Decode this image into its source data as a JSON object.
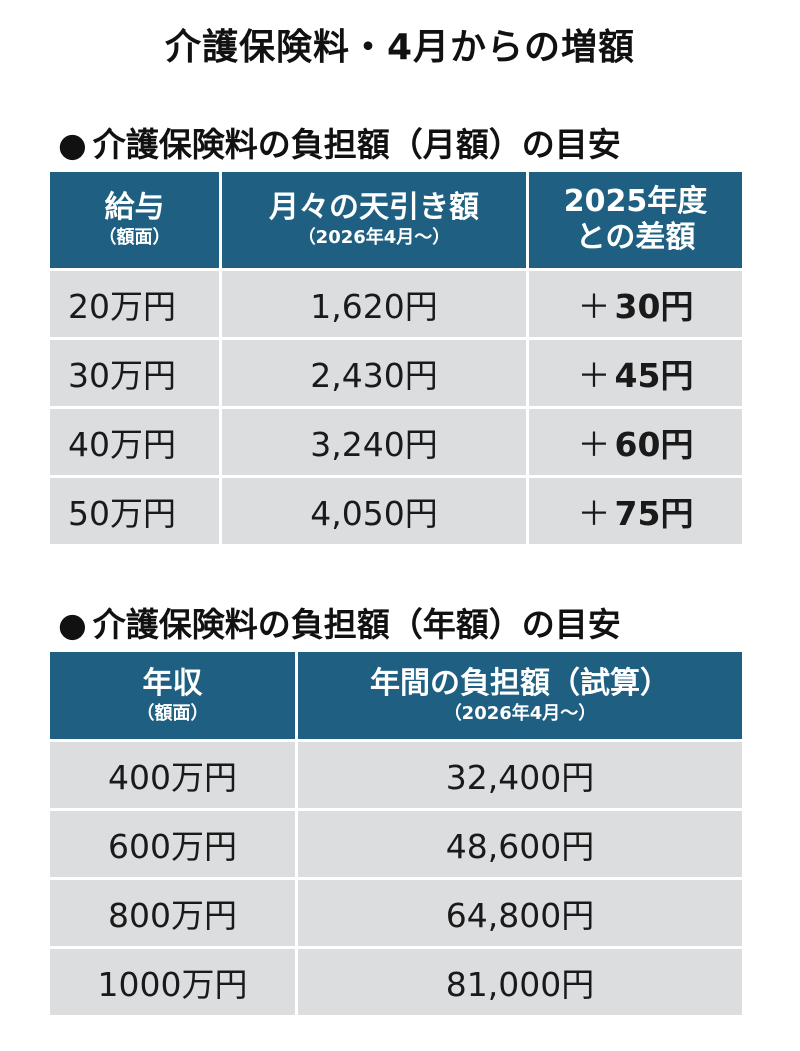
{
  "title": "介護保険料・4月からの増額",
  "monthly": {
    "heading": "介護保険料の負担額（月額）の目安",
    "bullet": "●",
    "headers": [
      {
        "main": "給与",
        "sub": "（額面）"
      },
      {
        "main": "月々の天引き額",
        "sub": "（2026年4月～）"
      },
      {
        "main": "2025年度",
        "sub2": "との差額"
      }
    ],
    "rows": [
      {
        "salary": "20万円",
        "deduction": "1,620円",
        "plus": "＋",
        "diff": "30円"
      },
      {
        "salary": "30万円",
        "deduction": "2,430円",
        "plus": "＋",
        "diff": "45円"
      },
      {
        "salary": "40万円",
        "deduction": "3,240円",
        "plus": "＋",
        "diff": "60円"
      },
      {
        "salary": "50万円",
        "deduction": "4,050円",
        "plus": "＋",
        "diff": "75円"
      }
    ]
  },
  "annual": {
    "heading": "介護保険料の負担額（年額）の目安",
    "bullet": "●",
    "headers": [
      {
        "main": "年収",
        "sub": "（額面）"
      },
      {
        "main": "年間の負担額（試算）",
        "sub": "（2026年4月～）"
      }
    ],
    "rows": [
      {
        "income": "400万円",
        "burden": "32,400円"
      },
      {
        "income": "600万円",
        "burden": "48,600円"
      },
      {
        "income": "800万円",
        "burden": "64,800円"
      },
      {
        "income": "1000万円",
        "burden": "81,000円"
      }
    ]
  },
  "colors": {
    "header_bg": "#1e5f82",
    "cell_bg": "#dcdddf"
  }
}
